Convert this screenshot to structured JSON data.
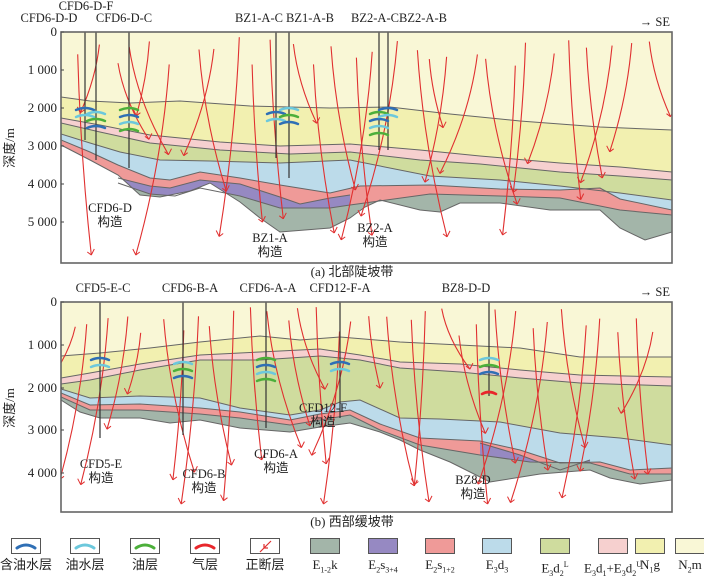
{
  "panels": [
    {
      "id": "a",
      "caption": "(a) 北部陡坡带",
      "ylabel": "深度/m",
      "direction": "→ SE",
      "yticks": [
        "0",
        "1 000",
        "2 000",
        "3 000",
        "4 000",
        "5 000"
      ],
      "wells": [
        {
          "name": "CFD6-D-F"
        },
        {
          "name": "CFD6-D-D"
        },
        {
          "name": "CFD6-D-C"
        },
        {
          "name": "BZ1-A-C"
        },
        {
          "name": "BZ1-A-B"
        },
        {
          "name": "BZ2-A-C"
        },
        {
          "name": "BZ2-A-B"
        }
      ],
      "structures": [
        {
          "name": "CFD6-D",
          "suffix": "构造"
        },
        {
          "name": "BZ1-A",
          "suffix": "构造"
        },
        {
          "name": "BZ2-A",
          "suffix": "构造"
        }
      ]
    },
    {
      "id": "b",
      "caption": "(b) 西部缓坡带",
      "ylabel": "深度/m",
      "direction": "→ SE",
      "yticks": [
        "0",
        "1 000",
        "2 000",
        "3 000",
        "4 000"
      ],
      "wells": [
        {
          "name": "CFD5-E-C"
        },
        {
          "name": "CFD6-B-A"
        },
        {
          "name": "CFD6-A-A"
        },
        {
          "name": "CFD12-F-A"
        },
        {
          "name": "BZ8-D-D"
        }
      ],
      "structures": [
        {
          "name": "CFD5-E",
          "suffix": "构造"
        },
        {
          "name": "CFD6-B",
          "suffix": "构造"
        },
        {
          "name": "CFD6-A",
          "suffix": "构造"
        },
        {
          "name": "CFD12-F",
          "suffix": "构造"
        },
        {
          "name": "BZ8-D",
          "suffix": "构造"
        }
      ]
    }
  ],
  "legend": [
    {
      "key": "oil-bearing-water",
      "label": "含油水层",
      "type": "lens",
      "color": "#2f6fb5"
    },
    {
      "key": "oil-water",
      "label": "油水层",
      "type": "lens",
      "color": "#6cc8dc"
    },
    {
      "key": "oil",
      "label": "油层",
      "type": "lens",
      "color": "#4caf3a"
    },
    {
      "key": "gas",
      "label": "气层",
      "type": "lens",
      "color": "#e8262b"
    },
    {
      "key": "normal-fault",
      "label": "正断层",
      "type": "fault",
      "color": "#e03030"
    },
    {
      "key": "E12k",
      "label_html": "E<sub>1-2</sub>k",
      "type": "fill",
      "color": "#a3b5a9"
    },
    {
      "key": "E2s34",
      "label_html": "E<sub>2</sub>s<sub>3+4</sub>",
      "type": "fill",
      "color": "#9689c2"
    },
    {
      "key": "E2s12",
      "label_html": "E<sub>2</sub>s<sub>1+2</sub>",
      "type": "fill",
      "color": "#ef9a98"
    },
    {
      "key": "E3d3",
      "label_html": "E<sub>3</sub>d<sub>3</sub>",
      "type": "fill",
      "color": "#bcdbea"
    },
    {
      "key": "E3d2L",
      "label_html": "E<sub>3</sub>d<sub>2</sub><sup>L</sup>",
      "type": "fill",
      "color": "#cfdc9e"
    },
    {
      "key": "E3d1E3d2U",
      "label_html": "E<sub>3</sub>d<sub>1</sub>+E<sub>3</sub>d<sub>2</sub><sup>U</sup>",
      "type": "fill",
      "color": "#f6d0cf"
    },
    {
      "key": "N1g",
      "label_html": "N<sub>1</sub>g",
      "type": "fill",
      "color": "#f2f0b0"
    },
    {
      "key": "N2m",
      "label_html": "N<sub>2</sub>m",
      "type": "fill",
      "color": "#f9f7d6"
    }
  ],
  "colors": {
    "fault": "#e03030",
    "well": "#333333",
    "frame": "#666666",
    "boundary": "#666666"
  }
}
